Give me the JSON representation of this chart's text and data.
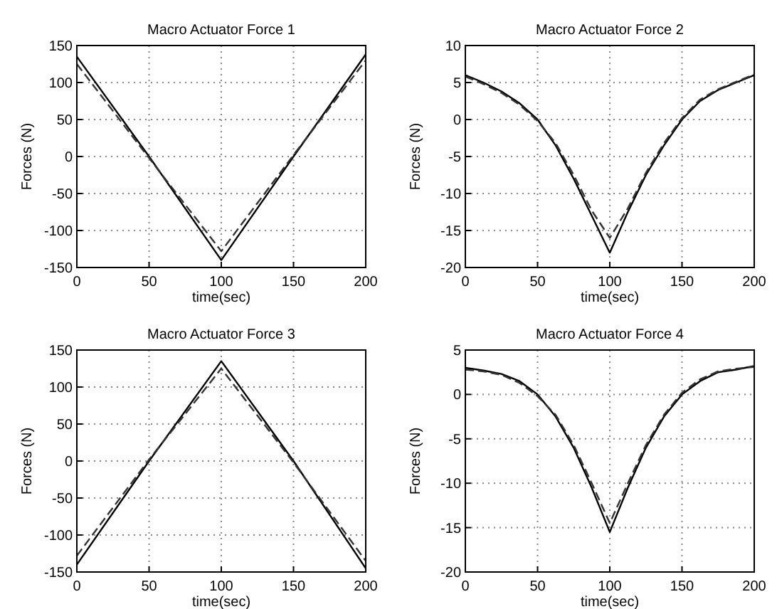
{
  "chart_data": [
    {
      "type": "line",
      "title": "Macro Actuator Force 1",
      "xlabel": "time(sec)",
      "ylabel": "Forces (N)",
      "xlim": [
        0,
        200
      ],
      "ylim": [
        -150,
        150
      ],
      "xticks": [
        0,
        50,
        100,
        150,
        200
      ],
      "yticks": [
        -150,
        -100,
        -50,
        0,
        50,
        100,
        150
      ],
      "grid": true,
      "x": [
        0,
        50,
        100,
        150,
        200
      ],
      "series": [
        {
          "color": "#000000",
          "line_style": "solid",
          "values": [
            135,
            0,
            -140,
            0,
            138
          ]
        },
        {
          "color": "#333333",
          "line_style": "dashed",
          "values": [
            125,
            -2,
            -128,
            2,
            130
          ]
        }
      ]
    },
    {
      "type": "line",
      "title": "Macro Actuator Force 2",
      "xlabel": "time(sec)",
      "ylabel": "Forces (N)",
      "xlim": [
        0,
        200
      ],
      "ylim": [
        -20,
        10
      ],
      "xticks": [
        0,
        50,
        100,
        150,
        200
      ],
      "yticks": [
        -20,
        -15,
        -10,
        -5,
        0,
        5,
        10
      ],
      "grid": true,
      "x": [
        0,
        12.5,
        25,
        37.5,
        50,
        62.5,
        75,
        87.5,
        100,
        112.5,
        125,
        137.5,
        150,
        162.5,
        175,
        187.5,
        200
      ],
      "series": [
        {
          "color": "#000000",
          "line_style": "solid",
          "values": [
            6,
            5,
            3.8,
            2.2,
            0,
            -3.5,
            -8,
            -13,
            -18,
            -12.5,
            -7.5,
            -3.5,
            0,
            2.5,
            4,
            5,
            6
          ]
        },
        {
          "color": "#333333",
          "line_style": "dashed",
          "values": [
            5.8,
            4.8,
            3.6,
            2,
            -0.2,
            -3.2,
            -7.5,
            -12.3,
            -16,
            -12,
            -7.2,
            -3.2,
            0.2,
            2.7,
            4.1,
            5.1,
            6.1
          ]
        }
      ]
    },
    {
      "type": "line",
      "title": "Macro Actuator Force 3",
      "xlabel": "time(sec)",
      "ylabel": "Forces (N)",
      "xlim": [
        0,
        200
      ],
      "ylim": [
        -150,
        150
      ],
      "xticks": [
        0,
        50,
        100,
        150,
        200
      ],
      "yticks": [
        -150,
        -100,
        -50,
        0,
        50,
        100,
        150
      ],
      "grid": true,
      "x": [
        0,
        50,
        100,
        150,
        200
      ],
      "series": [
        {
          "color": "#000000",
          "line_style": "solid",
          "values": [
            -140,
            0,
            135,
            0,
            -145
          ]
        },
        {
          "color": "#333333",
          "line_style": "dashed",
          "values": [
            -128,
            2,
            125,
            -2,
            -135
          ]
        }
      ]
    },
    {
      "type": "line",
      "title": "Macro Actuator Force 4",
      "xlabel": "time(sec)",
      "ylabel": "Forces (N)",
      "xlim": [
        0,
        200
      ],
      "ylim": [
        -20,
        5
      ],
      "xticks": [
        0,
        50,
        100,
        150,
        200
      ],
      "yticks": [
        -20,
        -15,
        -10,
        -5,
        0,
        5
      ],
      "grid": true,
      "x": [
        0,
        12.5,
        25,
        37.5,
        50,
        62.5,
        75,
        87.5,
        100,
        112.5,
        125,
        137.5,
        150,
        162.5,
        175,
        187.5,
        200
      ],
      "series": [
        {
          "color": "#000000",
          "line_style": "solid",
          "values": [
            3,
            2.7,
            2.3,
            1.5,
            0,
            -2.5,
            -6,
            -10.5,
            -15.5,
            -10.5,
            -6,
            -2.5,
            0,
            1.5,
            2.5,
            2.8,
            3.2
          ]
        },
        {
          "color": "#333333",
          "line_style": "dashed",
          "values": [
            2.8,
            2.6,
            2.2,
            1.3,
            -0.2,
            -2.3,
            -5.7,
            -10,
            -14.5,
            -10,
            -5.7,
            -2.3,
            0.2,
            1.7,
            2.6,
            2.9,
            3.1
          ]
        }
      ]
    }
  ]
}
